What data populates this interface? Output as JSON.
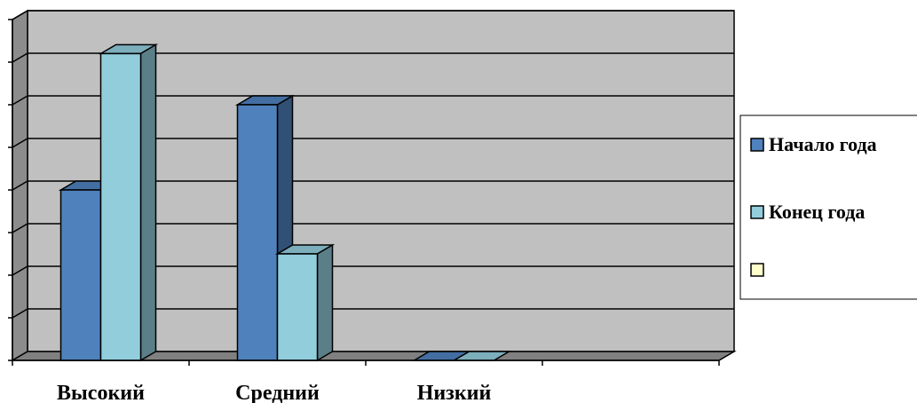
{
  "chart_data": {
    "type": "bar",
    "style": "3d-clustered-column",
    "categories": [
      "Высокий",
      "Средний",
      "Низкий",
      ""
    ],
    "series": [
      {
        "name": "Начало года",
        "values": [
          4,
          6,
          0,
          null
        ],
        "color": "#4F81BD"
      },
      {
        "name": "Конец года",
        "values": [
          7.2,
          2.5,
          0,
          null
        ],
        "color": "#92CDDC"
      },
      {
        "name": "",
        "values": [
          null,
          null,
          null,
          null
        ],
        "color": "#FFFFCC"
      }
    ],
    "ylim": [
      0,
      8
    ],
    "grid": true,
    "legend_position": "right",
    "plot_background": "#C0C0C0"
  }
}
